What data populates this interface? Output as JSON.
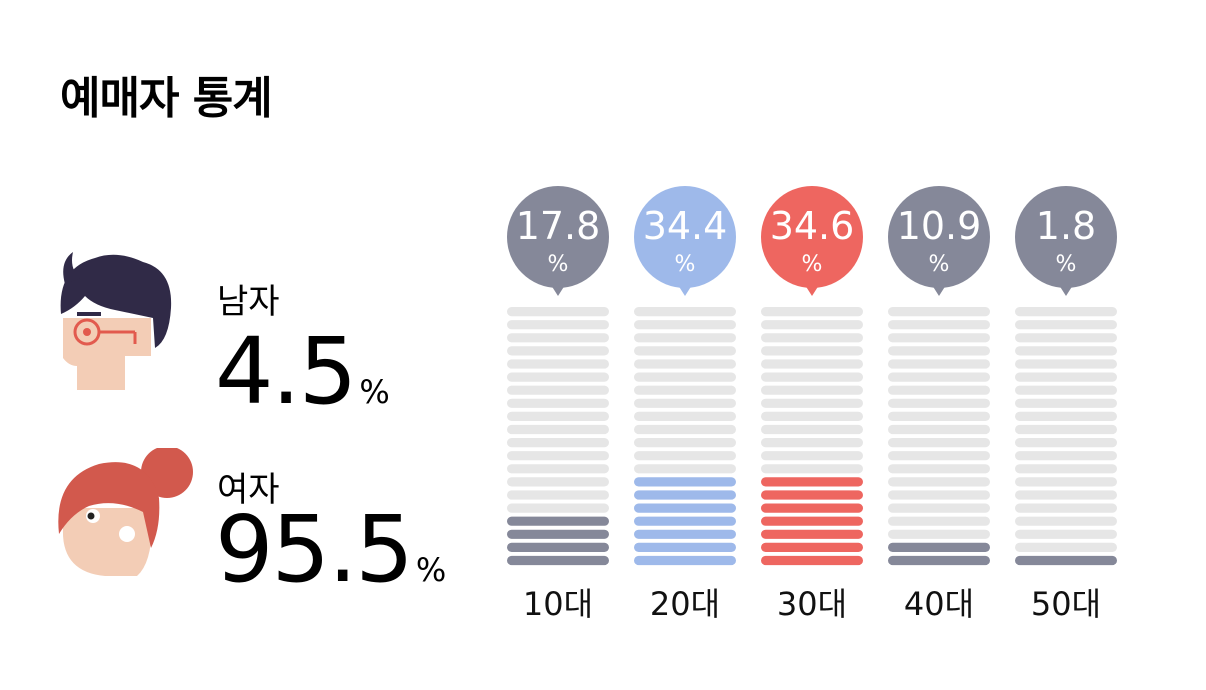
{
  "title": "예매자 통계",
  "gender": {
    "male": {
      "label": "남자",
      "value": "4.5",
      "unit": "%",
      "icon": "male-avatar-icon"
    },
    "female": {
      "label": "여자",
      "value": "95.5",
      "unit": "%",
      "icon": "female-avatar-icon"
    }
  },
  "colors": {
    "inactive": "#e6e6e6",
    "gray": "#858899",
    "blue": "#9eb9ea",
    "red": "#ee6660"
  },
  "chart_data": {
    "type": "bar",
    "categories": [
      "10대",
      "20대",
      "30대",
      "40대",
      "50대"
    ],
    "values": [
      17.8,
      34.4,
      34.6,
      10.9,
      1.8
    ],
    "unit": "%",
    "series_colors": [
      "gray",
      "blue",
      "red",
      "gray",
      "gray"
    ],
    "segments": 20,
    "ylim": [
      0,
      100
    ]
  }
}
